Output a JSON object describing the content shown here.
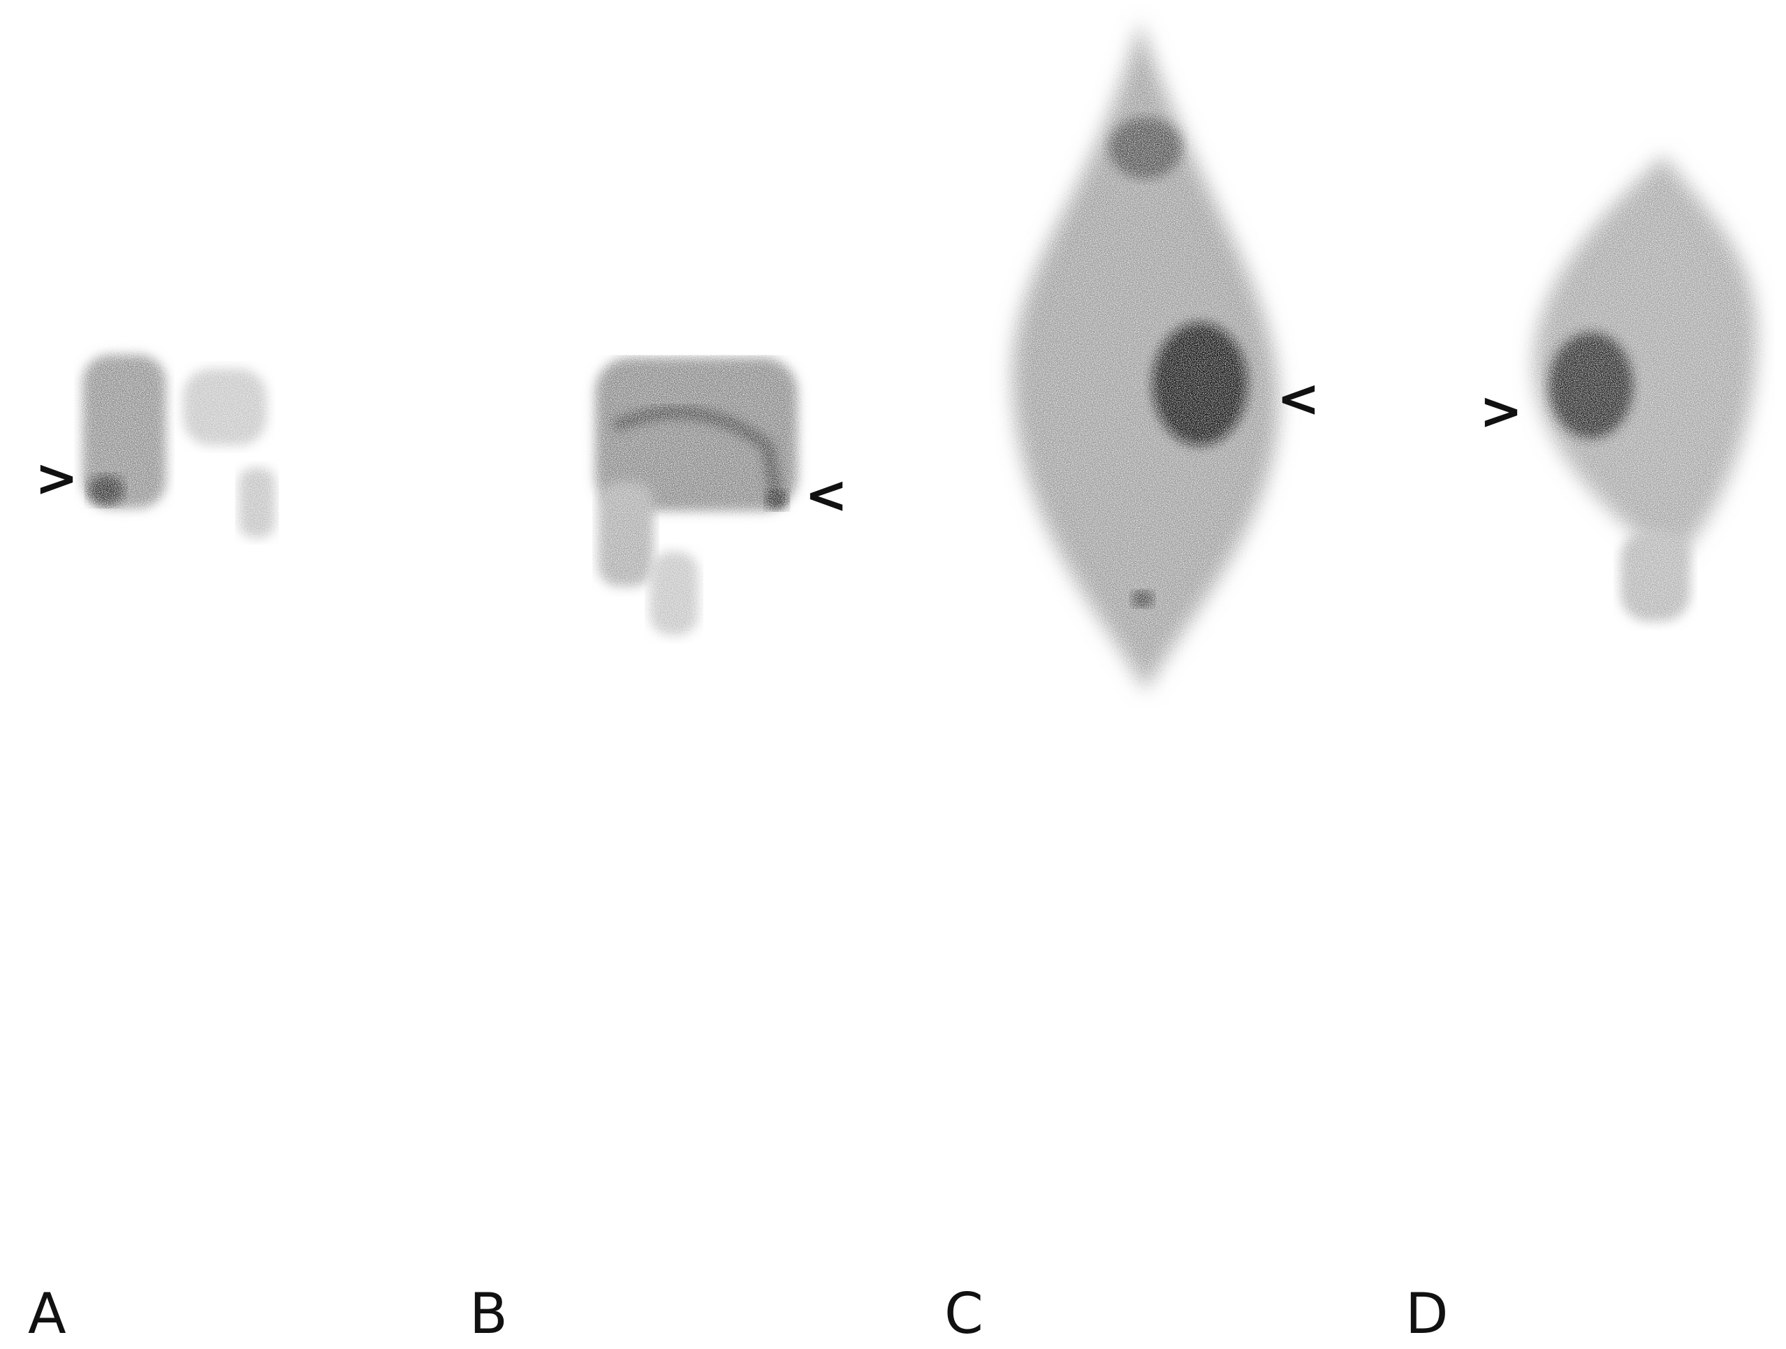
{
  "panels": [
    {
      "label": "A",
      "marker": ">"
    },
    {
      "label": "B",
      "marker": "<"
    },
    {
      "label": "C",
      "marker": "<"
    },
    {
      "label": "D",
      "marker": ">"
    }
  ],
  "colors": {
    "background": "#ffffff",
    "uptake_light": "#9a9a9a",
    "uptake_mid": "#555555",
    "uptake_dark": "#111111"
  }
}
